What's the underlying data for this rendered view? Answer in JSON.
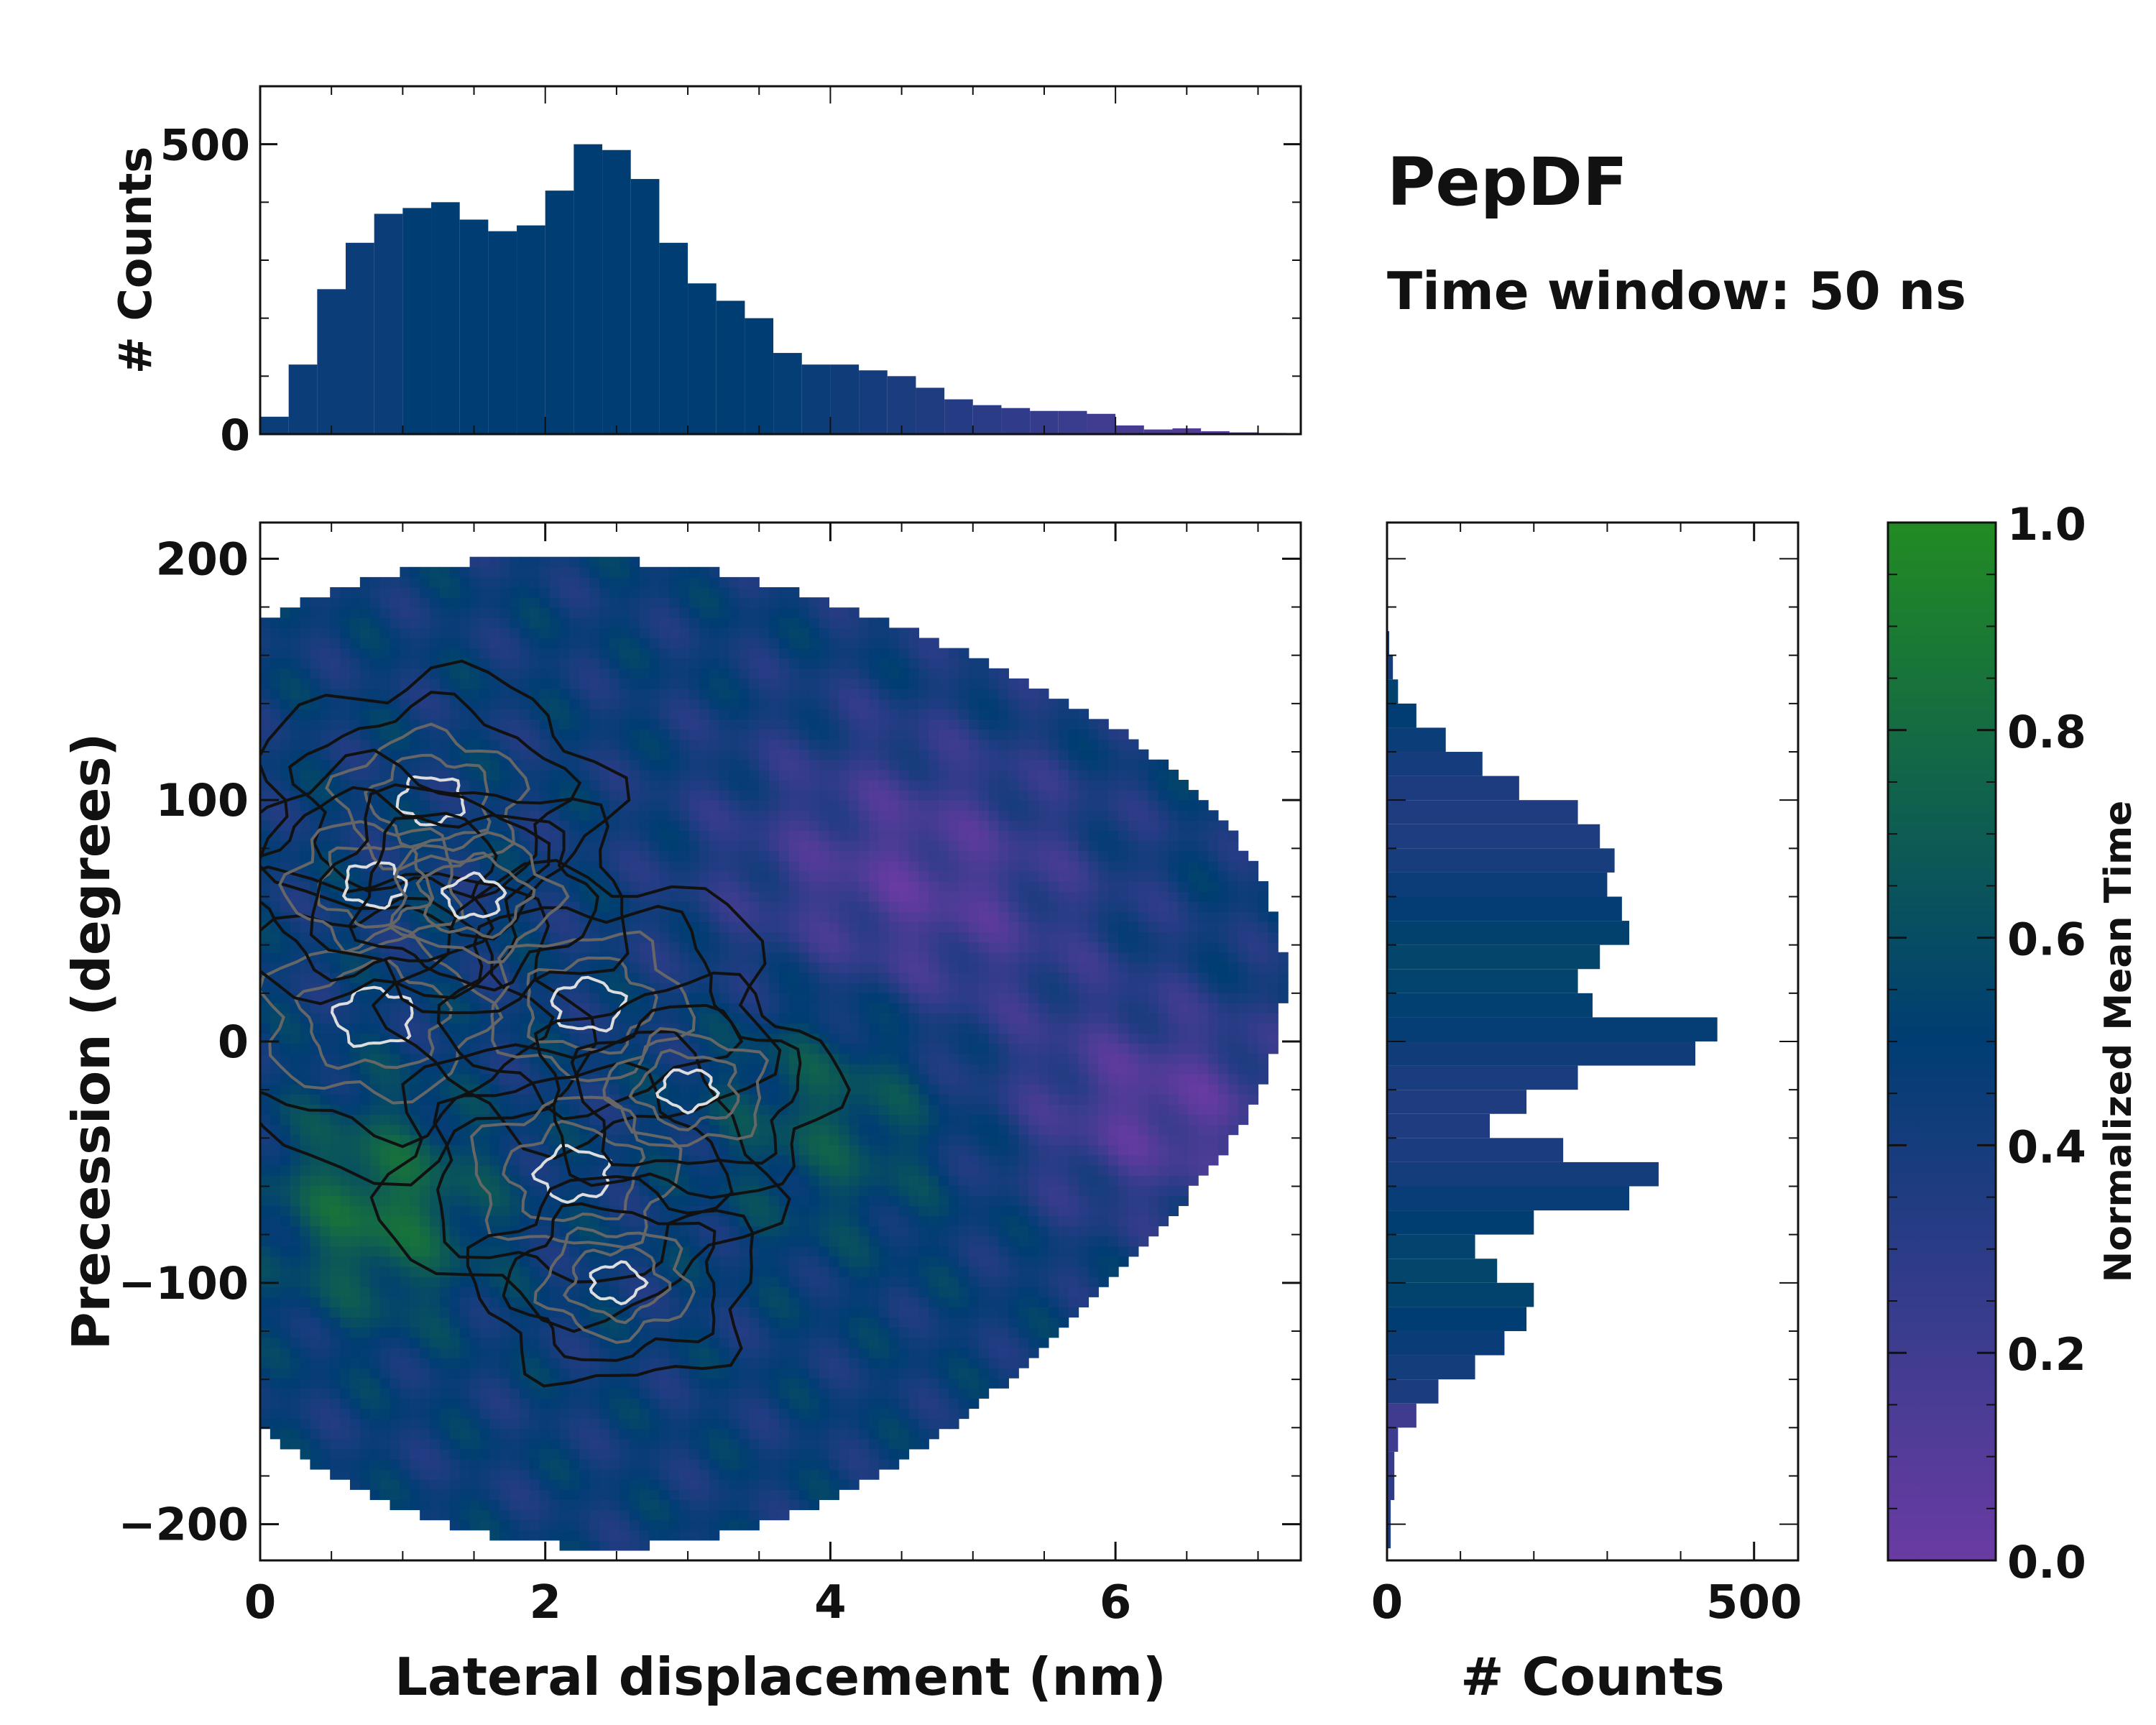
{
  "chart_data": [
    {
      "id": "top_hist",
      "type": "bar",
      "orientation": "vertical",
      "title": "",
      "xlabel": "",
      "ylabel": "# Counts",
      "xlim": [
        0,
        7.3
      ],
      "ylim": [
        0,
        600
      ],
      "y_ticks": [
        0,
        500
      ],
      "x_ticks": [],
      "x": [
        0.1,
        0.3,
        0.5,
        0.7,
        0.9,
        1.1,
        1.3,
        1.5,
        1.7,
        1.9,
        2.1,
        2.3,
        2.5,
        2.7,
        2.9,
        3.1,
        3.3,
        3.5,
        3.7,
        3.9,
        4.1,
        4.3,
        4.5,
        4.7,
        4.9,
        5.1,
        5.3,
        5.5,
        5.7,
        5.9,
        6.1,
        6.3,
        6.5,
        6.7,
        6.9,
        7.1
      ],
      "values": [
        30,
        120,
        250,
        330,
        380,
        390,
        400,
        370,
        350,
        360,
        420,
        500,
        490,
        440,
        330,
        260,
        230,
        200,
        140,
        120,
        120,
        110,
        100,
        80,
        60,
        50,
        45,
        40,
        40,
        35,
        15,
        8,
        10,
        5,
        3,
        2
      ]
    },
    {
      "id": "main_2d",
      "type": "heatmap",
      "title": "",
      "xlabel": "Lateral displacement (nm)",
      "ylabel": "Precession (degrees)",
      "xlim": [
        0,
        7.3
      ],
      "ylim": [
        -215,
        215
      ],
      "x_ticks": [
        0,
        2,
        4,
        6
      ],
      "y_ticks": [
        -200,
        -100,
        0,
        100,
        200
      ],
      "density_peaks": [
        {
          "x": 0.8,
          "y": 10,
          "density": 1.0
        },
        {
          "x": 1.2,
          "y": 100,
          "density": 0.7
        },
        {
          "x": 0.8,
          "y": 65,
          "density": 0.6
        },
        {
          "x": 2.3,
          "y": 15,
          "density": 0.8
        },
        {
          "x": 2.2,
          "y": -55,
          "density": 0.85
        },
        {
          "x": 3.0,
          "y": -20,
          "density": 0.5
        },
        {
          "x": 2.5,
          "y": -100,
          "density": 0.45
        },
        {
          "x": 1.5,
          "y": 60,
          "density": 0.55
        }
      ]
    },
    {
      "id": "right_hist",
      "type": "bar",
      "orientation": "horizontal",
      "title": "",
      "xlabel": "# Counts",
      "ylabel": "",
      "xlim": [
        0,
        560
      ],
      "ylim": [
        -215,
        215
      ],
      "x_ticks": [
        0,
        500
      ],
      "y_ticks": [],
      "y": [
        -205,
        -195,
        -185,
        -175,
        -165,
        -155,
        -145,
        -135,
        -125,
        -115,
        -105,
        -95,
        -85,
        -75,
        -65,
        -55,
        -45,
        -35,
        -25,
        -15,
        -5,
        5,
        15,
        25,
        35,
        45,
        55,
        65,
        75,
        85,
        95,
        105,
        115,
        125,
        135,
        145,
        155,
        165
      ],
      "values": [
        5,
        5,
        10,
        10,
        15,
        40,
        70,
        120,
        160,
        190,
        200,
        150,
        120,
        200,
        330,
        370,
        240,
        140,
        190,
        260,
        420,
        450,
        280,
        260,
        290,
        330,
        320,
        300,
        310,
        290,
        260,
        180,
        130,
        80,
        40,
        15,
        8,
        3
      ]
    },
    {
      "id": "colorbar",
      "type": "colorbar",
      "label": "Normalized Mean Time",
      "range": [
        0.0,
        1.0
      ],
      "ticks": [
        "0.0",
        "0.2",
        "0.4",
        "0.6",
        "0.8",
        "1.0"
      ]
    }
  ],
  "annotations": {
    "title": "PepDF",
    "subtitle": "Time window: 50 ns"
  },
  "colors": {
    "cmap_low": "#6a3ba3",
    "cmap_mid": "#003d73",
    "cmap_high": "#228b22",
    "contour_dark": "#111111",
    "contour_light": "#dddddd"
  }
}
